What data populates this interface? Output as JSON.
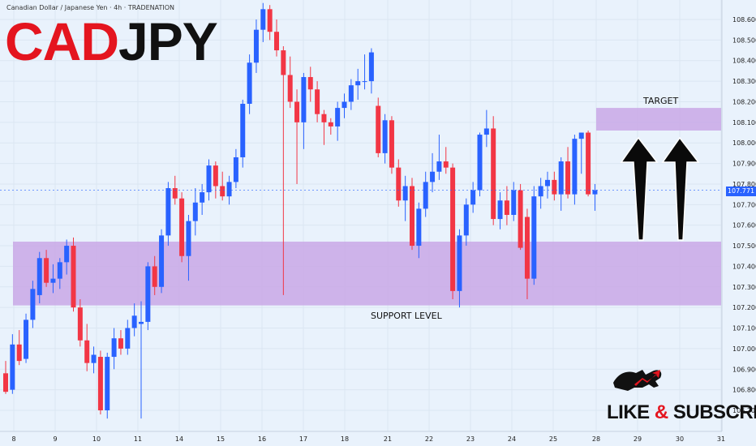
{
  "header": {
    "symbol_description": "Canadian Dollar / Japanese Yen · 4h · TRADENATION"
  },
  "title": {
    "part_red": "CAD",
    "part_black": "JPY"
  },
  "annotations": {
    "target_label": "TARGET",
    "support_label": "SUPPORT LEVEL",
    "cta_like": "LIKE",
    "cta_amp": "&",
    "cta_subscribe": "SUBSCRIBE"
  },
  "colors": {
    "bull": "#2962ff",
    "bear": "#f23645",
    "zone": "#c9a8e6",
    "background": "#e9f2fc",
    "title_red": "#e4151f"
  },
  "current_price": "107.771",
  "chart_data": {
    "type": "candlestick",
    "title": "",
    "y_ticks": [
      "108.600",
      "108.500",
      "108.400",
      "108.300",
      "108.200",
      "108.100",
      "108.000",
      "107.900",
      "107.800",
      "107.700",
      "107.600",
      "107.500",
      "107.400",
      "107.300",
      "107.200",
      "107.100",
      "107.000",
      "106.900",
      "106.800",
      "106.700"
    ],
    "x_ticks": [
      "8",
      "9",
      "10",
      "11",
      "14",
      "15",
      "16",
      "17",
      "18",
      "21",
      "22",
      "23",
      "24",
      "25",
      "28",
      "29",
      "30",
      "31"
    ],
    "ylim": [
      106.65,
      108.68
    ],
    "zones": [
      {
        "name": "TARGET",
        "from": 108.06,
        "to": 108.17
      },
      {
        "name": "SUPPORT LEVEL",
        "from": 107.21,
        "to": 107.52
      }
    ],
    "candles": [
      {
        "o": 106.88,
        "h": 106.94,
        "l": 106.78,
        "c": 106.79
      },
      {
        "o": 106.8,
        "h": 107.07,
        "l": 106.78,
        "c": 107.02
      },
      {
        "o": 107.02,
        "h": 107.09,
        "l": 106.92,
        "c": 106.94
      },
      {
        "o": 106.95,
        "h": 107.17,
        "l": 106.93,
        "c": 107.14
      },
      {
        "o": 107.14,
        "h": 107.33,
        "l": 107.1,
        "c": 107.29
      },
      {
        "o": 107.26,
        "h": 107.47,
        "l": 107.22,
        "c": 107.44
      },
      {
        "o": 107.44,
        "h": 107.48,
        "l": 107.3,
        "c": 107.32
      },
      {
        "o": 107.32,
        "h": 107.41,
        "l": 107.27,
        "c": 107.34
      },
      {
        "o": 107.34,
        "h": 107.44,
        "l": 107.29,
        "c": 107.42
      },
      {
        "o": 107.42,
        "h": 107.53,
        "l": 107.36,
        "c": 107.5
      },
      {
        "o": 107.5,
        "h": 107.54,
        "l": 107.18,
        "c": 107.2
      },
      {
        "o": 107.2,
        "h": 107.24,
        "l": 107.01,
        "c": 107.04
      },
      {
        "o": 107.04,
        "h": 107.12,
        "l": 106.89,
        "c": 106.93
      },
      {
        "o": 106.93,
        "h": 107.01,
        "l": 106.88,
        "c": 106.97
      },
      {
        "o": 106.96,
        "h": 106.99,
        "l": 106.68,
        "c": 106.7
      },
      {
        "o": 106.7,
        "h": 106.98,
        "l": 106.66,
        "c": 106.96
      },
      {
        "o": 106.96,
        "h": 107.1,
        "l": 106.9,
        "c": 107.05
      },
      {
        "o": 107.05,
        "h": 107.09,
        "l": 106.97,
        "c": 107.0
      },
      {
        "o": 107.0,
        "h": 107.14,
        "l": 106.97,
        "c": 107.1
      },
      {
        "o": 107.1,
        "h": 107.22,
        "l": 107.06,
        "c": 107.16
      },
      {
        "o": 107.12,
        "h": 107.23,
        "l": 106.66,
        "c": 107.13
      },
      {
        "o": 107.13,
        "h": 107.42,
        "l": 107.09,
        "c": 107.4
      },
      {
        "o": 107.4,
        "h": 107.45,
        "l": 107.26,
        "c": 107.3
      },
      {
        "o": 107.3,
        "h": 107.58,
        "l": 107.27,
        "c": 107.55
      },
      {
        "o": 107.55,
        "h": 107.81,
        "l": 107.5,
        "c": 107.78
      },
      {
        "o": 107.78,
        "h": 107.84,
        "l": 107.7,
        "c": 107.73
      },
      {
        "o": 107.73,
        "h": 107.76,
        "l": 107.42,
        "c": 107.45
      },
      {
        "o": 107.45,
        "h": 107.65,
        "l": 107.33,
        "c": 107.62
      },
      {
        "o": 107.62,
        "h": 107.78,
        "l": 107.55,
        "c": 107.71
      },
      {
        "o": 107.71,
        "h": 107.8,
        "l": 107.65,
        "c": 107.76
      },
      {
        "o": 107.76,
        "h": 107.92,
        "l": 107.72,
        "c": 107.89
      },
      {
        "o": 107.89,
        "h": 107.91,
        "l": 107.73,
        "c": 107.79
      },
      {
        "o": 107.79,
        "h": 107.86,
        "l": 107.72,
        "c": 107.74
      },
      {
        "o": 107.74,
        "h": 107.84,
        "l": 107.7,
        "c": 107.81
      },
      {
        "o": 107.81,
        "h": 107.97,
        "l": 107.78,
        "c": 107.93
      },
      {
        "o": 107.93,
        "h": 108.21,
        "l": 107.88,
        "c": 108.19
      },
      {
        "o": 108.19,
        "h": 108.43,
        "l": 108.14,
        "c": 108.39
      },
      {
        "o": 108.39,
        "h": 108.6,
        "l": 108.34,
        "c": 108.55
      },
      {
        "o": 108.55,
        "h": 108.68,
        "l": 108.49,
        "c": 108.65
      },
      {
        "o": 108.65,
        "h": 108.67,
        "l": 108.5,
        "c": 108.54
      },
      {
        "o": 108.54,
        "h": 108.6,
        "l": 108.42,
        "c": 108.45
      },
      {
        "o": 108.45,
        "h": 108.47,
        "l": 107.26,
        "c": 108.33
      },
      {
        "o": 108.33,
        "h": 108.42,
        "l": 108.17,
        "c": 108.2
      },
      {
        "o": 108.2,
        "h": 108.26,
        "l": 107.8,
        "c": 108.1
      },
      {
        "o": 108.1,
        "h": 108.34,
        "l": 107.97,
        "c": 108.32
      },
      {
        "o": 108.32,
        "h": 108.37,
        "l": 108.2,
        "c": 108.26
      },
      {
        "o": 108.26,
        "h": 108.3,
        "l": 108.1,
        "c": 108.14
      },
      {
        "o": 108.14,
        "h": 108.16,
        "l": 107.99,
        "c": 108.1
      },
      {
        "o": 108.1,
        "h": 108.12,
        "l": 108.04,
        "c": 108.08
      },
      {
        "o": 108.08,
        "h": 108.2,
        "l": 108.01,
        "c": 108.17
      },
      {
        "o": 108.17,
        "h": 108.24,
        "l": 108.12,
        "c": 108.2
      },
      {
        "o": 108.2,
        "h": 108.31,
        "l": 108.16,
        "c": 108.28
      },
      {
        "o": 108.28,
        "h": 108.36,
        "l": 108.21,
        "c": 108.3
      },
      {
        "o": 108.3,
        "h": 108.43,
        "l": 108.26,
        "c": 108.3
      },
      {
        "o": 108.3,
        "h": 108.46,
        "l": 108.24,
        "c": 108.44
      },
      {
        "o": 108.18,
        "h": 108.22,
        "l": 107.93,
        "c": 107.95
      },
      {
        "o": 107.95,
        "h": 108.14,
        "l": 107.9,
        "c": 108.11
      },
      {
        "o": 108.11,
        "h": 108.13,
        "l": 107.85,
        "c": 107.88
      },
      {
        "o": 107.88,
        "h": 107.92,
        "l": 107.69,
        "c": 107.72
      },
      {
        "o": 107.72,
        "h": 107.84,
        "l": 107.62,
        "c": 107.79
      },
      {
        "o": 107.79,
        "h": 107.83,
        "l": 107.48,
        "c": 107.5
      },
      {
        "o": 107.5,
        "h": 107.71,
        "l": 107.44,
        "c": 107.68
      },
      {
        "o": 107.68,
        "h": 107.86,
        "l": 107.64,
        "c": 107.81
      },
      {
        "o": 107.81,
        "h": 107.95,
        "l": 107.76,
        "c": 107.86
      },
      {
        "o": 107.86,
        "h": 108.04,
        "l": 107.82,
        "c": 107.91
      },
      {
        "o": 107.91,
        "h": 107.98,
        "l": 107.85,
        "c": 107.88
      },
      {
        "o": 107.88,
        "h": 107.9,
        "l": 107.24,
        "c": 107.28
      },
      {
        "o": 107.28,
        "h": 107.58,
        "l": 107.2,
        "c": 107.55
      },
      {
        "o": 107.55,
        "h": 107.73,
        "l": 107.5,
        "c": 107.7
      },
      {
        "o": 107.7,
        "h": 107.81,
        "l": 107.66,
        "c": 107.77
      },
      {
        "o": 107.77,
        "h": 108.05,
        "l": 107.74,
        "c": 108.04
      },
      {
        "o": 108.04,
        "h": 108.16,
        "l": 107.98,
        "c": 108.07
      },
      {
        "o": 108.07,
        "h": 108.13,
        "l": 107.6,
        "c": 107.63
      },
      {
        "o": 107.63,
        "h": 107.76,
        "l": 107.58,
        "c": 107.72
      },
      {
        "o": 107.72,
        "h": 107.79,
        "l": 107.6,
        "c": 107.65
      },
      {
        "o": 107.65,
        "h": 107.81,
        "l": 107.62,
        "c": 107.77
      },
      {
        "o": 107.77,
        "h": 107.8,
        "l": 107.48,
        "c": 107.49
      },
      {
        "o": 107.64,
        "h": 107.68,
        "l": 107.24,
        "c": 107.34
      },
      {
        "o": 107.34,
        "h": 107.79,
        "l": 107.31,
        "c": 107.74
      },
      {
        "o": 107.74,
        "h": 107.83,
        "l": 107.68,
        "c": 107.79
      },
      {
        "o": 107.79,
        "h": 107.86,
        "l": 107.73,
        "c": 107.82
      },
      {
        "o": 107.82,
        "h": 107.86,
        "l": 107.72,
        "c": 107.75
      },
      {
        "o": 107.75,
        "h": 107.93,
        "l": 107.67,
        "c": 107.91
      },
      {
        "o": 107.91,
        "h": 107.98,
        "l": 107.73,
        "c": 107.75
      },
      {
        "o": 107.75,
        "h": 108.04,
        "l": 107.7,
        "c": 108.02
      },
      {
        "o": 108.02,
        "h": 108.05,
        "l": 107.85,
        "c": 108.05
      },
      {
        "o": 108.05,
        "h": 108.06,
        "l": 107.74,
        "c": 107.75
      },
      {
        "o": 107.75,
        "h": 107.8,
        "l": 107.67,
        "c": 107.77
      }
    ]
  }
}
